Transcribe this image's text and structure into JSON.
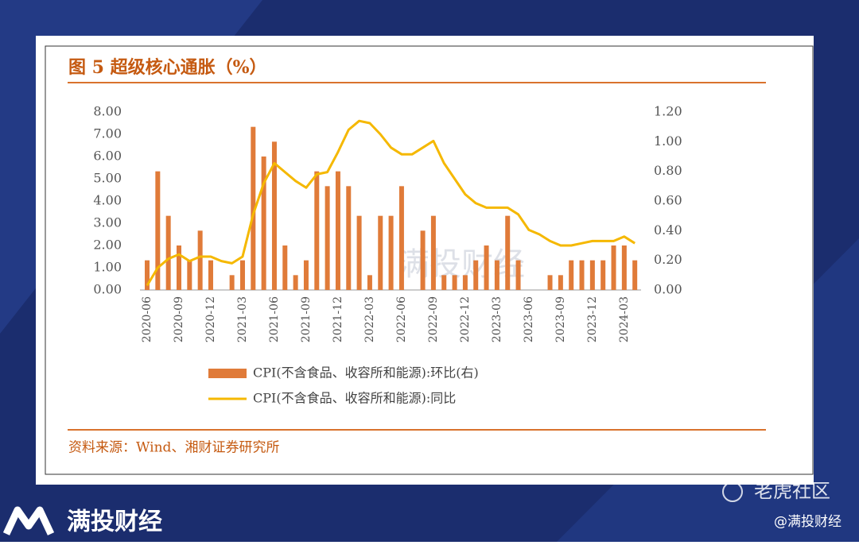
{
  "chart_data": {
    "type": "bar-line",
    "title": "图 5 超级核心通胀（%）",
    "categories": [
      "2020-06",
      null,
      null,
      "2020-09",
      null,
      null,
      "2020-12",
      null,
      null,
      "2021-03",
      null,
      null,
      "2021-06",
      null,
      null,
      "2021-09",
      null,
      null,
      "2021-12",
      null,
      null,
      "2022-03",
      null,
      null,
      "2022-06",
      null,
      null,
      "2022-09",
      null,
      null,
      "2022-12",
      null,
      null,
      "2023-03",
      null,
      null,
      "2023-06",
      null,
      null,
      "2023-09",
      null,
      null,
      "2023-12",
      null,
      null,
      "2024-03",
      null
    ],
    "series": [
      {
        "name": "CPI(不含食品、收容所和能源):环比(右)",
        "type": "bar",
        "axis": "y2",
        "color": "#e07b39",
        "values": [
          0.2,
          0.8,
          0.5,
          0.3,
          0.2,
          0.4,
          0.2,
          0,
          0.1,
          0.2,
          1.1,
          0.9,
          1.0,
          0.3,
          0.1,
          0.2,
          0.8,
          0.7,
          0.8,
          0.7,
          0.5,
          0.1,
          0.5,
          0.5,
          0.7,
          0,
          0.4,
          0.5,
          0.1,
          0.1,
          0.1,
          0.2,
          0.3,
          0.2,
          0.5,
          0.2,
          0,
          0,
          0.1,
          0.1,
          0.2,
          0.2,
          0.2,
          0.2,
          0.3,
          0.3,
          0.2
        ]
      },
      {
        "name": "CPI(不含食品、收容所和能源):同比",
        "type": "line",
        "axis": "y",
        "color": "#f5b800",
        "values": [
          0.2,
          1.0,
          1.4,
          1.6,
          1.3,
          1.5,
          1.5,
          1.3,
          1.2,
          1.5,
          3.4,
          4.8,
          5.7,
          5.3,
          4.9,
          4.6,
          5.2,
          5.3,
          6.2,
          7.2,
          7.6,
          7.5,
          7.0,
          6.4,
          6.1,
          6.1,
          6.4,
          6.7,
          5.7,
          5.0,
          4.3,
          3.9,
          3.7,
          3.7,
          3.7,
          3.4,
          2.7,
          2.5,
          2.2,
          2.0,
          2.0,
          2.1,
          2.2,
          2.2,
          2.2,
          2.4,
          2.1
        ]
      }
    ],
    "ylim": [
      0,
      8
    ],
    "yticks": [
      {
        "value": 0,
        "label": "0.00"
      },
      {
        "value": 1,
        "label": "1.00"
      },
      {
        "value": 2,
        "label": "2.00"
      },
      {
        "value": 3,
        "label": "3.00"
      },
      {
        "value": 4,
        "label": "4.00"
      },
      {
        "value": 5,
        "label": "5.00"
      },
      {
        "value": 6,
        "label": "6.00"
      },
      {
        "value": 7,
        "label": "7.00"
      },
      {
        "value": 8,
        "label": "8.00"
      }
    ],
    "y2lim": [
      0,
      1.2
    ],
    "y2ticks": [
      {
        "value": 0,
        "label": "0.00"
      },
      {
        "value": 0.2,
        "label": "0.20"
      },
      {
        "value": 0.4,
        "label": "0.40"
      },
      {
        "value": 0.6,
        "label": "0.60"
      },
      {
        "value": 0.8,
        "label": "0.80"
      },
      {
        "value": 1.0,
        "label": "1.00"
      },
      {
        "value": 1.2,
        "label": "1.20"
      }
    ],
    "grid": false,
    "legend": "bottom"
  },
  "source": "资料来源：Wind、湘财证券研究所",
  "watermark": "满投财经",
  "brand": "满投财经",
  "community": "老虎社区",
  "handle": "@满投财经"
}
